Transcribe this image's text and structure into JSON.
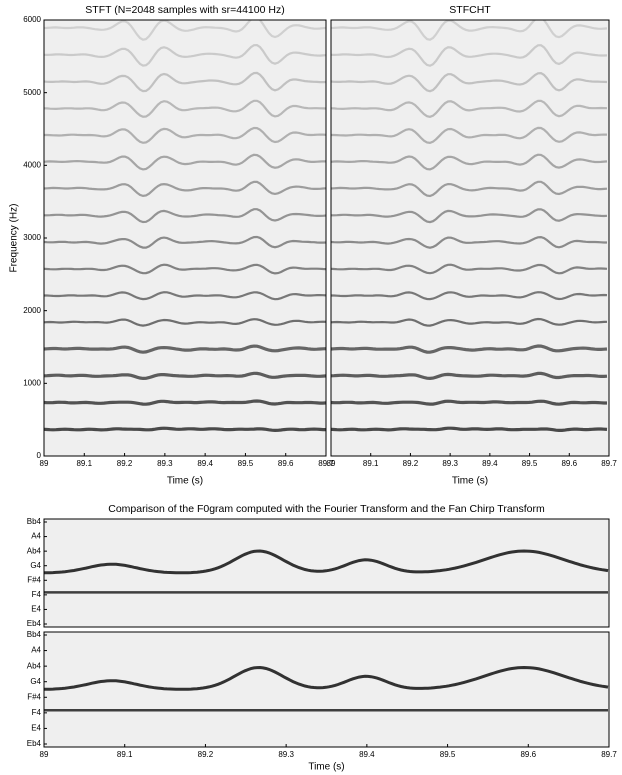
{
  "chart_data": [
    {
      "type": "heatmap",
      "title": "STFT (N=2048 samples with sr=44100 Hz)",
      "xlabel": "Time (s)",
      "ylabel": "Frequency (Hz)",
      "xlim": [
        89,
        89.7
      ],
      "xticks": [
        89,
        89.1,
        89.2,
        89.3,
        89.4,
        89.5,
        89.6,
        89.7
      ],
      "ylim": [
        0,
        6000
      ],
      "yticks": [
        0,
        1000,
        2000,
        3000,
        4000,
        5000,
        6000
      ]
    },
    {
      "type": "heatmap",
      "title": "STFCHT",
      "xlabel": "Time (s)",
      "xlim": [
        89,
        89.7
      ],
      "xticks": [
        89,
        89.1,
        89.2,
        89.3,
        89.4,
        89.5,
        89.6,
        89.7
      ],
      "ylim": [
        0,
        6000
      ]
    },
    {
      "type": "heatmap",
      "title": "Comparison of the F0gram computed with the Fourier Transform and the Fan Chirp Transform",
      "xlim": [
        89,
        89.7
      ],
      "y_categories": [
        "Eb4",
        "E4",
        "F4",
        "F#4",
        "G4",
        "Ab4",
        "A4",
        "Bb4"
      ]
    },
    {
      "type": "heatmap",
      "xlabel": "Time (s)",
      "xlim": [
        89,
        89.7
      ],
      "xticks": [
        89,
        89.1,
        89.2,
        89.3,
        89.4,
        89.5,
        89.6,
        89.7
      ],
      "y_categories": [
        "Eb4",
        "E4",
        "F4",
        "F#4",
        "G4",
        "Ab4",
        "A4",
        "Bb4"
      ]
    }
  ]
}
